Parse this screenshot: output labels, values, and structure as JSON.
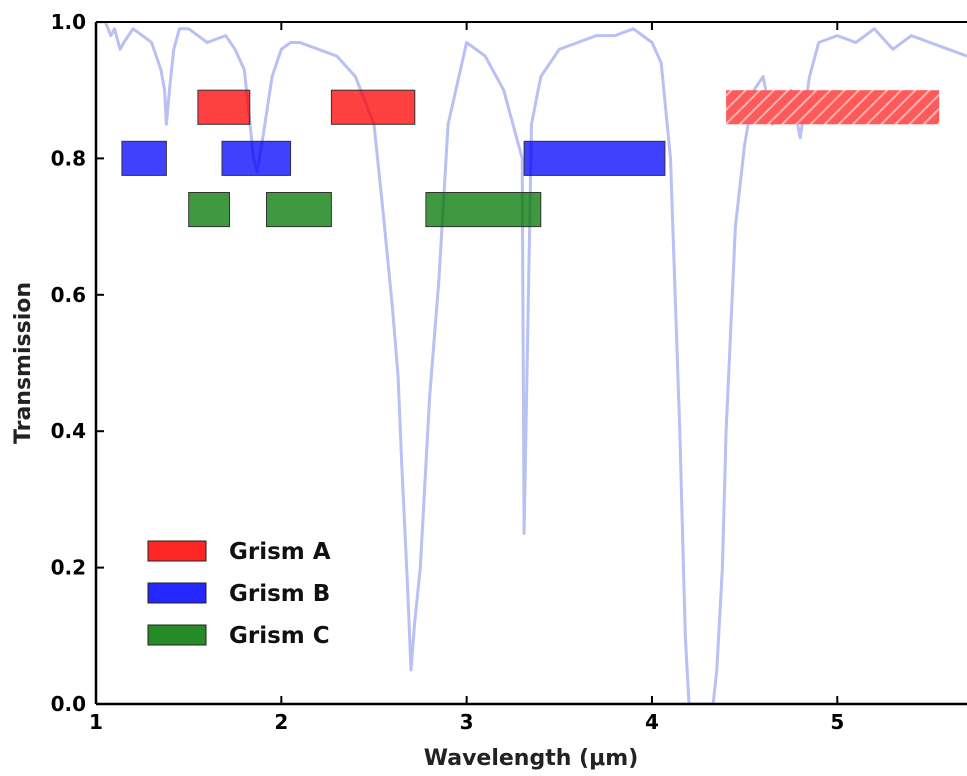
{
  "chart_data": {
    "type": "line",
    "xlabel": "Wavelength (μm)",
    "ylabel": "Transmission",
    "xlim": [
      1.0,
      5.7
    ],
    "ylim": [
      0.0,
      1.0
    ],
    "x_ticks": [
      1,
      2,
      3,
      4,
      5
    ],
    "x_tick_labels": [
      "1",
      "2",
      "3",
      "4",
      "5"
    ],
    "y_ticks": [
      0.0,
      0.2,
      0.4,
      0.6,
      0.8,
      1.0
    ],
    "y_tick_labels": [
      "0.0",
      "0.2",
      "0.4",
      "0.6",
      "0.8",
      "1.0"
    ],
    "grid": false,
    "legend_position": "lower-left",
    "transmission_color": "#b8c0f4",
    "series": [
      {
        "name": "Grism A",
        "color": "#ff0000",
        "y": 0.875,
        "bands": [
          {
            "x_start": 1.55,
            "x_end": 1.83,
            "hatched": false
          },
          {
            "x_start": 2.27,
            "x_end": 2.72,
            "hatched": false
          },
          {
            "x_start": 4.4,
            "x_end": 5.55,
            "hatched": true
          }
        ]
      },
      {
        "name": "Grism B",
        "color": "#0000ff",
        "y": 0.8,
        "bands": [
          {
            "x_start": 1.14,
            "x_end": 1.38,
            "hatched": false
          },
          {
            "x_start": 1.68,
            "x_end": 2.05,
            "hatched": false
          },
          {
            "x_start": 3.31,
            "x_end": 4.07,
            "hatched": false
          }
        ]
      },
      {
        "name": "Grism C",
        "color": "#007700",
        "y": 0.725,
        "bands": [
          {
            "x_start": 1.5,
            "x_end": 1.72,
            "hatched": false
          },
          {
            "x_start": 1.92,
            "x_end": 2.27,
            "hatched": false
          },
          {
            "x_start": 2.78,
            "x_end": 3.4,
            "hatched": false
          }
        ]
      }
    ],
    "transmission": {
      "x": [
        1.0,
        1.05,
        1.08,
        1.1,
        1.13,
        1.15,
        1.2,
        1.25,
        1.3,
        1.35,
        1.37,
        1.38,
        1.4,
        1.42,
        1.45,
        1.5,
        1.55,
        1.6,
        1.7,
        1.75,
        1.8,
        1.82,
        1.85,
        1.87,
        1.9,
        1.95,
        2.0,
        2.05,
        2.1,
        2.2,
        2.3,
        2.4,
        2.5,
        2.55,
        2.6,
        2.63,
        2.65,
        2.68,
        2.7,
        2.72,
        2.75,
        2.8,
        2.85,
        2.9,
        3.0,
        3.1,
        3.2,
        3.3,
        3.31,
        3.35,
        3.4,
        3.5,
        3.6,
        3.7,
        3.8,
        3.9,
        4.0,
        4.05,
        4.1,
        4.15,
        4.18,
        4.2,
        4.22,
        4.25,
        4.28,
        4.3,
        4.33,
        4.35,
        4.38,
        4.4,
        4.45,
        4.5,
        4.55,
        4.6,
        4.65,
        4.7,
        4.75,
        4.8,
        4.85,
        4.9,
        5.0,
        5.1,
        5.2,
        5.3,
        5.4,
        5.5,
        5.6,
        5.7
      ],
      "y": [
        1.0,
        1.0,
        0.98,
        0.99,
        0.96,
        0.97,
        0.99,
        0.98,
        0.97,
        0.93,
        0.9,
        0.85,
        0.91,
        0.96,
        0.99,
        0.99,
        0.98,
        0.97,
        0.98,
        0.96,
        0.93,
        0.88,
        0.8,
        0.78,
        0.83,
        0.92,
        0.96,
        0.97,
        0.97,
        0.96,
        0.95,
        0.92,
        0.85,
        0.72,
        0.58,
        0.48,
        0.35,
        0.18,
        0.05,
        0.12,
        0.2,
        0.45,
        0.62,
        0.85,
        0.97,
        0.95,
        0.9,
        0.8,
        0.25,
        0.85,
        0.92,
        0.96,
        0.97,
        0.98,
        0.98,
        0.99,
        0.97,
        0.94,
        0.8,
        0.4,
        0.1,
        0.0,
        0.0,
        0.0,
        0.0,
        0.0,
        0.0,
        0.05,
        0.2,
        0.4,
        0.7,
        0.82,
        0.9,
        0.92,
        0.85,
        0.88,
        0.9,
        0.83,
        0.92,
        0.97,
        0.98,
        0.97,
        0.99,
        0.96,
        0.98,
        0.97,
        0.96,
        0.95
      ]
    }
  }
}
